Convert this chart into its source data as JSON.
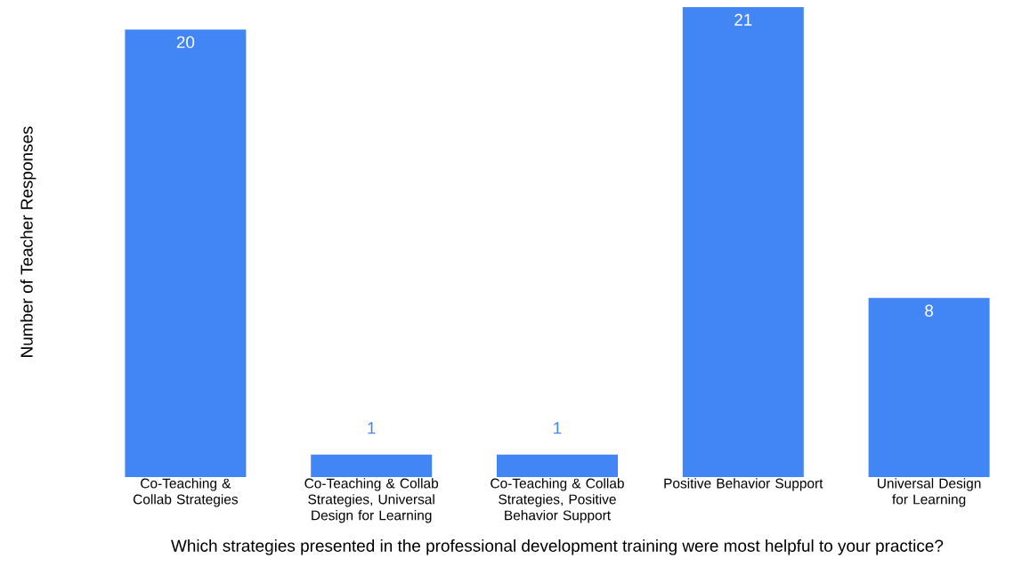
{
  "chart_data": {
    "type": "bar",
    "xlabel": "Which strategies presented in the professional development training were most helpful to your practice?",
    "ylabel": "Number of Teacher Responses",
    "categories": [
      "Co-Teaching & Collab Strategies",
      "Co-Teaching & Collab Strategies, Universal Design for Learning",
      "Co-Teaching & Collab Strategies, Positive Behavior Support",
      "Positive Behavior Support",
      "Universal Design for Learning"
    ],
    "values": [
      20,
      1,
      1,
      21,
      8
    ],
    "color": "#4285f4",
    "ylim": [
      0,
      21
    ],
    "data_labels": true
  }
}
